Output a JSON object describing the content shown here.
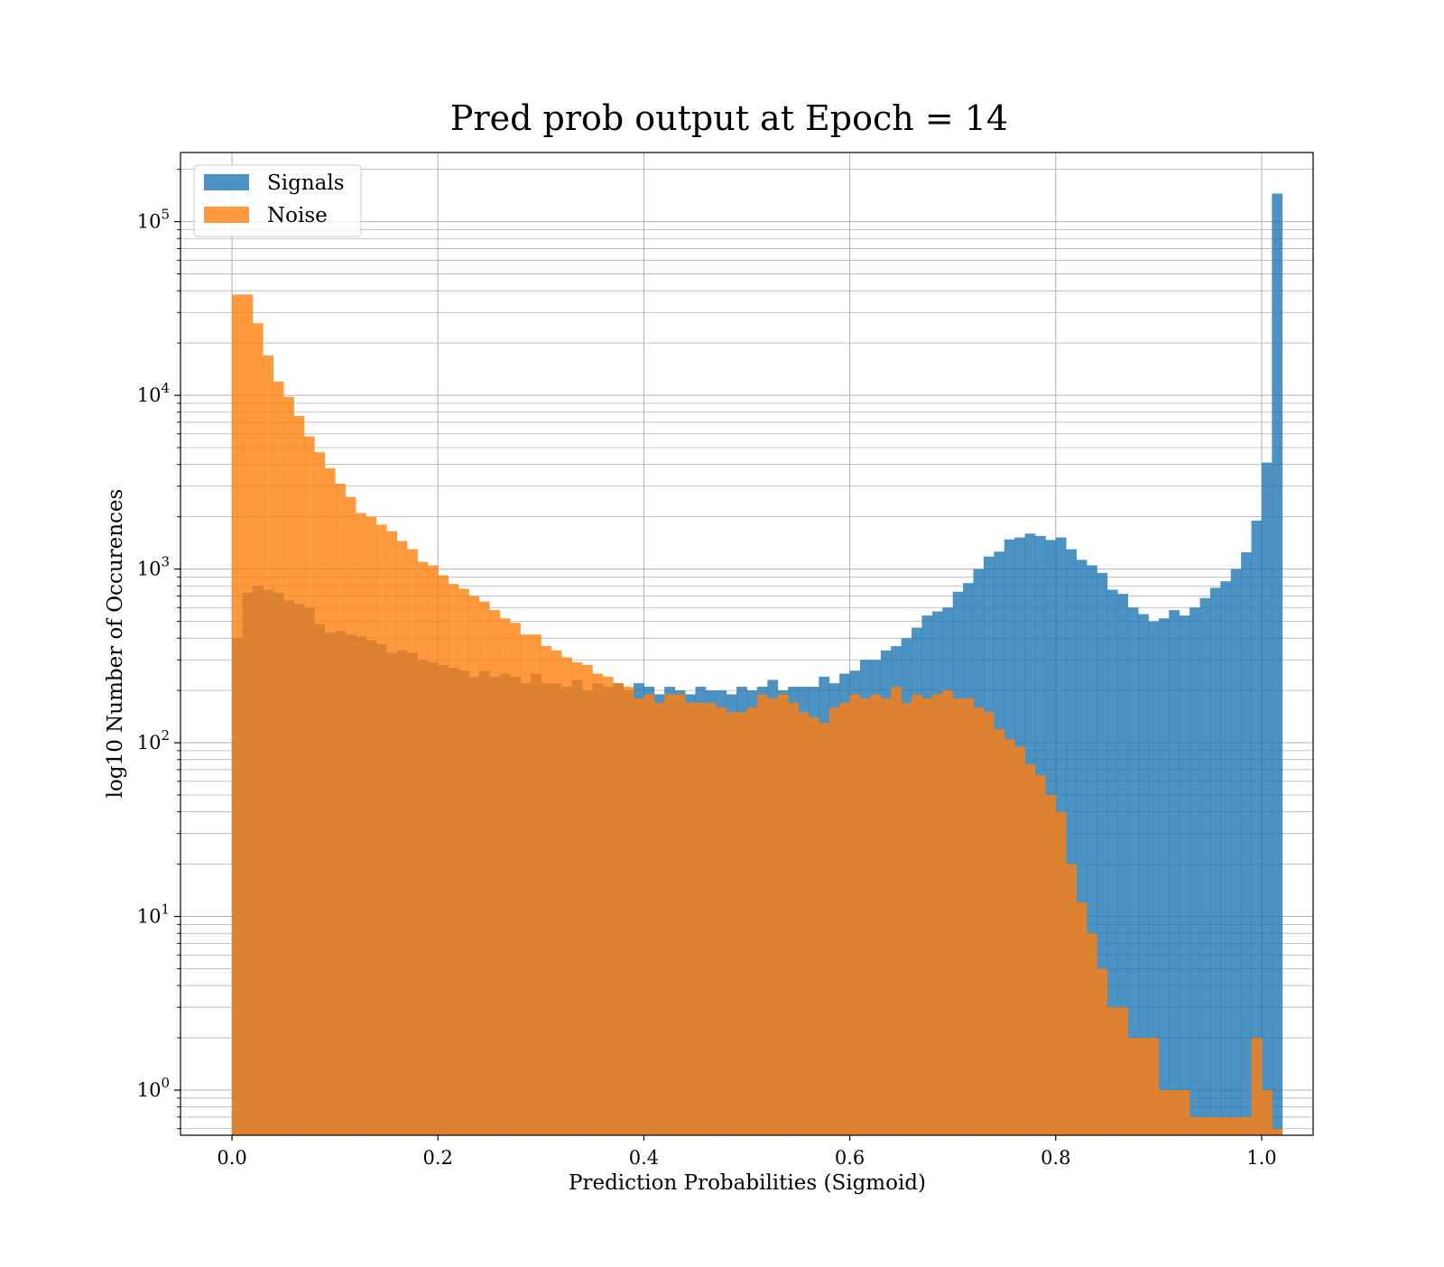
{
  "chart_data": {
    "type": "bar",
    "title": "Pred prob output at Epoch = 14",
    "xlabel": "Prediction Probabilities (Sigmoid)",
    "ylabel": "log10 Number of Occurences",
    "xlim": [
      -0.05,
      1.05
    ],
    "ylim": [
      0.55,
      250000
    ],
    "yscale": "log",
    "grid": true,
    "legend_position": "upper-left",
    "bin_width": 0.01,
    "xticks": [
      {
        "value": 0.0,
        "label": "0.0"
      },
      {
        "value": 0.2,
        "label": "0.2"
      },
      {
        "value": 0.4,
        "label": "0.4"
      },
      {
        "value": 0.6,
        "label": "0.6"
      },
      {
        "value": 0.8,
        "label": "0.8"
      },
      {
        "value": 1.0,
        "label": "1.0"
      }
    ],
    "yticks": [
      {
        "value": 1,
        "base": "10",
        "exp": "0"
      },
      {
        "value": 10,
        "base": "10",
        "exp": "1"
      },
      {
        "value": 100,
        "base": "10",
        "exp": "2"
      },
      {
        "value": 1000,
        "base": "10",
        "exp": "3"
      },
      {
        "value": 10000,
        "base": "10",
        "exp": "4"
      },
      {
        "value": 100000,
        "base": "10",
        "exp": "5"
      }
    ],
    "series": [
      {
        "name": "Signals",
        "color": "#1f77b4",
        "opacity": 0.8,
        "values": [
          400,
          730,
          800,
          760,
          730,
          660,
          630,
          600,
          480,
          430,
          440,
          420,
          410,
          390,
          370,
          330,
          340,
          330,
          300,
          290,
          280,
          270,
          260,
          240,
          260,
          240,
          250,
          240,
          220,
          250,
          220,
          220,
          210,
          230,
          200,
          220,
          210,
          220,
          200,
          220,
          210,
          190,
          210,
          200,
          190,
          210,
          200,
          200,
          190,
          210,
          200,
          210,
          230,
          200,
          210,
          210,
          210,
          240,
          220,
          250,
          260,
          300,
          300,
          340,
          360,
          400,
          460,
          540,
          570,
          600,
          740,
          830,
          1000,
          1180,
          1260,
          1480,
          1520,
          1600,
          1550,
          1470,
          1520,
          1300,
          1130,
          1050,
          950,
          760,
          720,
          600,
          550,
          500,
          520,
          580,
          540,
          600,
          680,
          780,
          850,
          1000,
          1250,
          1900,
          4100,
          145000
        ]
      },
      {
        "name": "Noise",
        "color": "#ff7f0e",
        "opacity": 0.8,
        "values": [
          38000,
          38000,
          26000,
          17000,
          12000,
          9800,
          7600,
          5800,
          4700,
          3800,
          3100,
          2600,
          2100,
          2000,
          1800,
          1650,
          1450,
          1300,
          1100,
          1050,
          920,
          820,
          770,
          700,
          650,
          580,
          520,
          490,
          420,
          420,
          360,
          340,
          310,
          290,
          280,
          250,
          240,
          220,
          210,
          180,
          190,
          170,
          190,
          190,
          170,
          170,
          170,
          160,
          150,
          150,
          160,
          190,
          180,
          190,
          170,
          150,
          140,
          130,
          160,
          170,
          190,
          180,
          190,
          180,
          210,
          170,
          190,
          180,
          190,
          200,
          180,
          180,
          160,
          150,
          120,
          105,
          95,
          75,
          65,
          50,
          40,
          20,
          12,
          8,
          5,
          3,
          3,
          2,
          2,
          2,
          1,
          1,
          1,
          0.7,
          0.7,
          0.7,
          0.7,
          0.7,
          0.7,
          2,
          1,
          0.6
        ]
      }
    ]
  }
}
